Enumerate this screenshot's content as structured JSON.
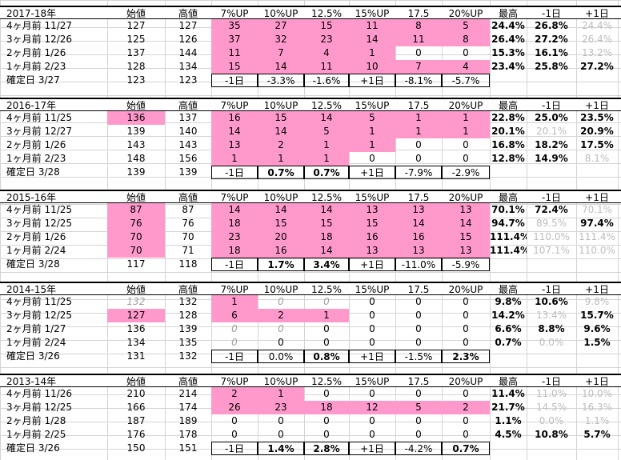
{
  "blocks": [
    {
      "header": [
        "2017-18年",
        "始値",
        "高値",
        "7%UP",
        "10%UP",
        "12.5%",
        "15%UP",
        "17.5",
        "20%UP",
        "最高",
        "-1日",
        "+1日"
      ],
      "rows": [
        [
          "4ヶ月前 11/27",
          "127",
          "127",
          "35",
          "27",
          "15",
          "11",
          "8",
          "5",
          "24.4%",
          "26.8%",
          "24.4%"
        ],
        [
          "3ヶ月前 12/26",
          "125",
          "126",
          "37",
          "32",
          "23",
          "14",
          "11",
          "8",
          "26.4%",
          "27.2%",
          "26.4%"
        ],
        [
          "2ヶ月前 1/26",
          "137",
          "144",
          "11",
          "7",
          "4",
          "1",
          "0",
          "0",
          "15.3%",
          "16.1%",
          "13.2%"
        ],
        [
          "1ヶ月前 2/23",
          "128",
          "134",
          "15",
          "14",
          "11",
          "10",
          "7",
          "4",
          "23.4%",
          "25.8%",
          "27.2%"
        ],
        [
          "確定日 3/27",
          "123",
          "123",
          "-1日",
          "-3.3%",
          "-1.6%",
          "+1日",
          "-8.1%",
          "-5.7%",
          "",
          "",
          ""
        ]
      ]
    },
    {
      "header": [
        "2016-17年",
        "始値",
        "高値",
        "7%UP",
        "10%UP",
        "12.5%",
        "15%UP",
        "17.5",
        "20%UP",
        "最高",
        "-1日",
        "+1日"
      ],
      "rows": [
        [
          "4ヶ月前 11/25",
          "136",
          "137",
          "16",
          "15",
          "14",
          "5",
          "1",
          "1",
          "22.8%",
          "25.0%",
          "23.5%"
        ],
        [
          "3ヶ月前 12/27",
          "139",
          "140",
          "14",
          "14",
          "5",
          "1",
          "1",
          "1",
          "20.1%",
          "20.1%",
          "20.9%"
        ],
        [
          "2ヶ月前 1/26",
          "143",
          "143",
          "13",
          "2",
          "1",
          "1",
          "0",
          "0",
          "16.8%",
          "18.2%",
          "17.5%"
        ],
        [
          "1ヶ月前 2/23",
          "148",
          "156",
          "1",
          "1",
          "1",
          "0",
          "0",
          "0",
          "12.8%",
          "14.9%",
          "8.1%"
        ],
        [
          "確定日 3/28",
          "139",
          "139",
          "-1日",
          "0.7%",
          "0.7%",
          "+1日",
          "-7.9%",
          "-2.9%",
          "",
          "",
          ""
        ]
      ]
    },
    {
      "header": [
        "2015-16年",
        "始値",
        "高値",
        "7%UP",
        "10%UP",
        "12.5%",
        "15%UP",
        "17.5",
        "20%UP",
        "最高",
        "-1日",
        "+1日"
      ],
      "rows": [
        [
          "4ヶ月前 11/25",
          "87",
          "87",
          "14",
          "14",
          "14",
          "13",
          "13",
          "13",
          "70.1%",
          "72.4%",
          "70.1%"
        ],
        [
          "3ヶ月前 12/25",
          "76",
          "76",
          "18",
          "15",
          "15",
          "15",
          "14",
          "14",
          "94.7%",
          "89.5%",
          "97.4%"
        ],
        [
          "2ヶ月前 1/26",
          "70",
          "70",
          "23",
          "20",
          "18",
          "16",
          "16",
          "15",
          "111.4%",
          "110.0%",
          "111.4%"
        ],
        [
          "1ヶ月前 2/24",
          "70",
          "71",
          "18",
          "16",
          "14",
          "13",
          "13",
          "13",
          "111.4%",
          "107.1%",
          "110.0%"
        ],
        [
          "確定日 3/28",
          "117",
          "118",
          "-1日",
          "1.7%",
          "3.4%",
          "+1日",
          "-11.0%",
          "-5.9%",
          "",
          "",
          ""
        ]
      ]
    },
    {
      "header": [
        "2014-15年",
        "始値",
        "高値",
        "7%UP",
        "10%UP",
        "12.5%",
        "15%UP",
        "17.5",
        "20%UP",
        "最高",
        "-1日",
        "+1日"
      ],
      "rows": [
        [
          "4ヶ月前 11/25",
          "132",
          "132",
          "1",
          "0",
          "0",
          "0",
          "0",
          "0",
          "9.8%",
          "10.6%",
          "9.8%"
        ],
        [
          "3ヶ月前 12/25",
          "127",
          "128",
          "6",
          "2",
          "1",
          "0",
          "0",
          "0",
          "14.2%",
          "13.4%",
          "15.7%"
        ],
        [
          "2ヶ月前 1/27",
          "136",
          "139",
          "0",
          "0",
          "0",
          "0",
          "0",
          "0",
          "6.6%",
          "8.8%",
          "9.6%"
        ],
        [
          "1ヶ月前 2/24",
          "134",
          "135",
          "0",
          "0",
          "0",
          "0",
          "0",
          "0",
          "0.7%",
          "0.0%",
          "1.5%"
        ],
        [
          "確定日 3/26",
          "131",
          "132",
          "-1日",
          "0.0%",
          "0.8%",
          "+1日",
          "-1.5%",
          "2.3%",
          "",
          "",
          ""
        ]
      ]
    },
    {
      "header": [
        "2013-14年",
        "始値",
        "高値",
        "7%UP",
        "10%UP",
        "12.5%",
        "15%UP",
        "17.5",
        "20%UP",
        "最高",
        "-1日",
        "+1日"
      ],
      "rows": [
        [
          "4ヶ月前 11/26",
          "210",
          "214",
          "2",
          "1",
          "0",
          "0",
          "0",
          "0",
          "11.4%",
          "11.0%",
          "10.0%"
        ],
        [
          "3ヶ月前 12/25",
          "166",
          "174",
          "26",
          "23",
          "18",
          "12",
          "5",
          "2",
          "21.7%",
          "14.5%",
          "16.3%"
        ],
        [
          "2ヶ月前 1/28",
          "187",
          "189",
          "0",
          "0",
          "0",
          "0",
          "0",
          "0",
          "1.1%",
          "0.0%",
          "1.1%"
        ],
        [
          "1ヶ月前 2/25",
          "176",
          "178",
          "0",
          "0",
          "0",
          "0",
          "0",
          "0",
          "4.5%",
          "10.8%",
          "5.7%"
        ],
        [
          "確定日 3/26",
          "150",
          "151",
          "-1日",
          "1.4%",
          "2.8%",
          "+1日",
          "-4.2%",
          "0.7%",
          "",
          "",
          ""
        ]
      ]
    }
  ],
  "colors": {
    "highlight": "#ff99cc",
    "muted_text": "#bdbdbd",
    "grid": "#d4d4d4"
  }
}
